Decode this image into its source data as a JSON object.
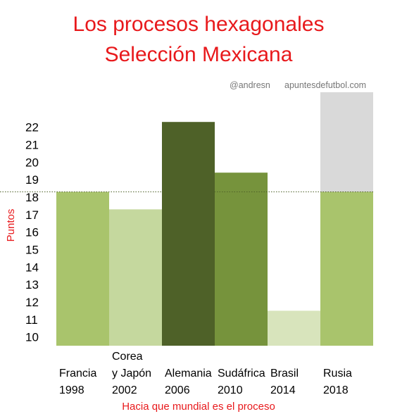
{
  "chart_data": {
    "type": "bar",
    "title": "Los procesos hexagonales",
    "subtitle": "Selección Mexicana",
    "credits": [
      "@andresn",
      "apuntesdefutbol.com"
    ],
    "xlabel": "Hacia que mundial es el proceso",
    "ylabel": "Puntos",
    "ylim": [
      9.5,
      24
    ],
    "yticks": [
      10,
      11,
      12,
      13,
      14,
      15,
      16,
      17,
      18,
      19,
      20,
      21,
      22
    ],
    "grid": false,
    "legend": "none",
    "categories": [
      [
        "Francia",
        "1998"
      ],
      [
        "Corea",
        "y Japón",
        "2002"
      ],
      [
        "Alemania",
        "2006"
      ],
      [
        "Sudáfrica",
        "2010"
      ],
      [
        "Brasil",
        "2014"
      ],
      [
        "Rusia",
        "2018"
      ]
    ],
    "values": [
      18.3,
      17.3,
      22.3,
      19.4,
      11.5,
      24
    ],
    "value_projection_2018": 18.3,
    "reference_line": 18.3,
    "colors": [
      "#a9c46c",
      "#c5d89e",
      "#4e6128",
      "#76933c",
      "#d8e4bc",
      "#a9c46c"
    ],
    "projection_color": "#d9d9d9",
    "reference_line_color": "#4e6128"
  }
}
